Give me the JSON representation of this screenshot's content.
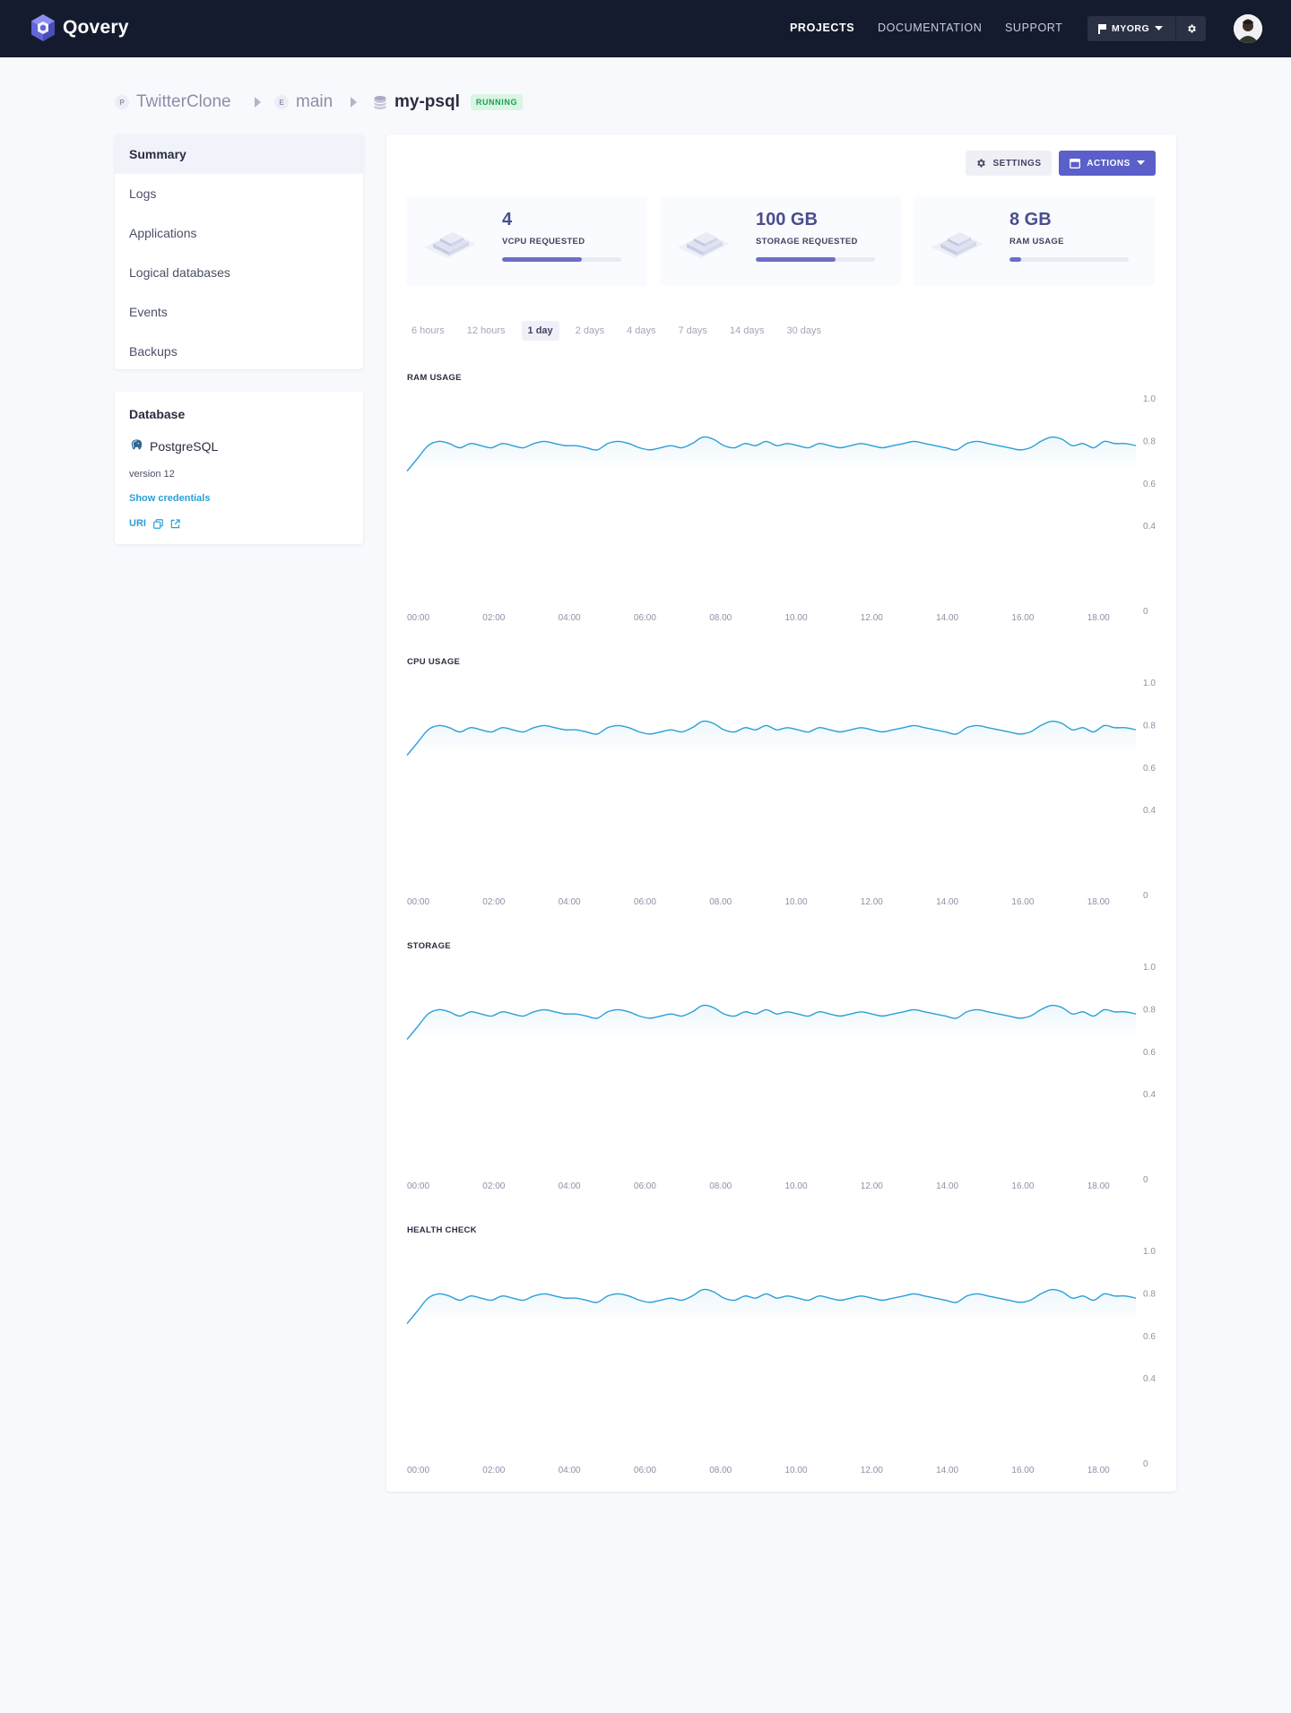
{
  "nav": {
    "brand": "Qovery",
    "links": [
      "PROJECTS",
      "DOCUMENTATION",
      "SUPPORT"
    ],
    "org": "MYORG",
    "icons": [
      "qovery-logo-icon",
      "org-flag-icon",
      "chevron-down-icon",
      "gear-icon",
      "user-avatar"
    ]
  },
  "breadcrumb": {
    "project_badge": "P",
    "project": "TwitterClone",
    "env_badge": "E",
    "environment": "main",
    "database": "my-psql",
    "status": "RUNNING"
  },
  "sidebar": {
    "items": [
      "Summary",
      "Logs",
      "Applications",
      "Logical databases",
      "Events",
      "Backups"
    ],
    "active": "Summary"
  },
  "database": {
    "title": "Database",
    "engine": "PostgreSQL",
    "version": "version 12",
    "show_credentials": "Show credentials",
    "uri_label": "URI"
  },
  "toolbar": {
    "settings_label": "SETTINGS",
    "actions_label": "ACTIONS"
  },
  "stats": [
    {
      "value": "4",
      "label": "VCPU REQUESTED",
      "fill": 0.67
    },
    {
      "value": "100 GB",
      "label": "STORAGE REQUESTED",
      "fill": 0.67
    },
    {
      "value": "8 GB",
      "label": "RAM USAGE",
      "fill": 0.1
    }
  ],
  "time_ranges": {
    "options": [
      "6 hours",
      "12 hours",
      "1 day",
      "2 days",
      "4 days",
      "7 days",
      "14 days",
      "30 days"
    ],
    "selected": "1 day"
  },
  "colors": {
    "line": "#2a9fd8",
    "accent": "#5b5fc9",
    "running": "#1e9d57"
  },
  "chart_data": [
    {
      "type": "line",
      "title": "RAM USAGE",
      "x_ticks": [
        "00:00",
        "02:00",
        "04:00",
        "06:00",
        "08.00",
        "10.00",
        "12.00",
        "14.00",
        "16.00",
        "18.00"
      ],
      "y_ticks": [
        "1.0",
        "0.8",
        "0.6",
        "0.4",
        "0"
      ],
      "ylim": [
        0,
        1.0
      ],
      "values": [
        0.66,
        0.72,
        0.78,
        0.8,
        0.79,
        0.77,
        0.79,
        0.78,
        0.77,
        0.79,
        0.78,
        0.77,
        0.79,
        0.8,
        0.79,
        0.78,
        0.78,
        0.77,
        0.76,
        0.79,
        0.8,
        0.79,
        0.77,
        0.76,
        0.77,
        0.78,
        0.77,
        0.79,
        0.82,
        0.81,
        0.78,
        0.77,
        0.79,
        0.78,
        0.8,
        0.78,
        0.79,
        0.78,
        0.77,
        0.79,
        0.78,
        0.77,
        0.78,
        0.79,
        0.78,
        0.77,
        0.78,
        0.79,
        0.8,
        0.79,
        0.78,
        0.77,
        0.76,
        0.79,
        0.8,
        0.79,
        0.78,
        0.77,
        0.76,
        0.77,
        0.8,
        0.82,
        0.81,
        0.78,
        0.79,
        0.77,
        0.8,
        0.79,
        0.79,
        0.78
      ]
    },
    {
      "type": "line",
      "title": "CPU USAGE",
      "x_ticks": [
        "00:00",
        "02:00",
        "04:00",
        "06:00",
        "08.00",
        "10.00",
        "12.00",
        "14.00",
        "16.00",
        "18.00"
      ],
      "y_ticks": [
        "1.0",
        "0.8",
        "0.6",
        "0.4",
        "0"
      ],
      "ylim": [
        0,
        1.0
      ],
      "values": [
        0.66,
        0.72,
        0.78,
        0.8,
        0.79,
        0.77,
        0.79,
        0.78,
        0.77,
        0.79,
        0.78,
        0.77,
        0.79,
        0.8,
        0.79,
        0.78,
        0.78,
        0.77,
        0.76,
        0.79,
        0.8,
        0.79,
        0.77,
        0.76,
        0.77,
        0.78,
        0.77,
        0.79,
        0.82,
        0.81,
        0.78,
        0.77,
        0.79,
        0.78,
        0.8,
        0.78,
        0.79,
        0.78,
        0.77,
        0.79,
        0.78,
        0.77,
        0.78,
        0.79,
        0.78,
        0.77,
        0.78,
        0.79,
        0.8,
        0.79,
        0.78,
        0.77,
        0.76,
        0.79,
        0.8,
        0.79,
        0.78,
        0.77,
        0.76,
        0.77,
        0.8,
        0.82,
        0.81,
        0.78,
        0.79,
        0.77,
        0.8,
        0.79,
        0.79,
        0.78
      ]
    },
    {
      "type": "line",
      "title": "STORAGE",
      "x_ticks": [
        "00:00",
        "02:00",
        "04:00",
        "06:00",
        "08.00",
        "10.00",
        "12.00",
        "14.00",
        "16.00",
        "18.00"
      ],
      "y_ticks": [
        "1.0",
        "0.8",
        "0.6",
        "0.4",
        "0"
      ],
      "ylim": [
        0,
        1.0
      ],
      "values": [
        0.66,
        0.72,
        0.78,
        0.8,
        0.79,
        0.77,
        0.79,
        0.78,
        0.77,
        0.79,
        0.78,
        0.77,
        0.79,
        0.8,
        0.79,
        0.78,
        0.78,
        0.77,
        0.76,
        0.79,
        0.8,
        0.79,
        0.77,
        0.76,
        0.77,
        0.78,
        0.77,
        0.79,
        0.82,
        0.81,
        0.78,
        0.77,
        0.79,
        0.78,
        0.8,
        0.78,
        0.79,
        0.78,
        0.77,
        0.79,
        0.78,
        0.77,
        0.78,
        0.79,
        0.78,
        0.77,
        0.78,
        0.79,
        0.8,
        0.79,
        0.78,
        0.77,
        0.76,
        0.79,
        0.8,
        0.79,
        0.78,
        0.77,
        0.76,
        0.77,
        0.8,
        0.82,
        0.81,
        0.78,
        0.79,
        0.77,
        0.8,
        0.79,
        0.79,
        0.78
      ]
    },
    {
      "type": "line",
      "title": "HEALTH CHECK",
      "x_ticks": [
        "00:00",
        "02:00",
        "04:00",
        "06:00",
        "08.00",
        "10.00",
        "12.00",
        "14.00",
        "16.00",
        "18.00"
      ],
      "y_ticks": [
        "1.0",
        "0.8",
        "0.6",
        "0.4",
        "0"
      ],
      "ylim": [
        0,
        1.0
      ],
      "values": [
        0.66,
        0.72,
        0.78,
        0.8,
        0.79,
        0.77,
        0.79,
        0.78,
        0.77,
        0.79,
        0.78,
        0.77,
        0.79,
        0.8,
        0.79,
        0.78,
        0.78,
        0.77,
        0.76,
        0.79,
        0.8,
        0.79,
        0.77,
        0.76,
        0.77,
        0.78,
        0.77,
        0.79,
        0.82,
        0.81,
        0.78,
        0.77,
        0.79,
        0.78,
        0.8,
        0.78,
        0.79,
        0.78,
        0.77,
        0.79,
        0.78,
        0.77,
        0.78,
        0.79,
        0.78,
        0.77,
        0.78,
        0.79,
        0.8,
        0.79,
        0.78,
        0.77,
        0.76,
        0.79,
        0.8,
        0.79,
        0.78,
        0.77,
        0.76,
        0.77,
        0.8,
        0.82,
        0.81,
        0.78,
        0.79,
        0.77,
        0.8,
        0.79,
        0.79,
        0.78
      ]
    }
  ]
}
